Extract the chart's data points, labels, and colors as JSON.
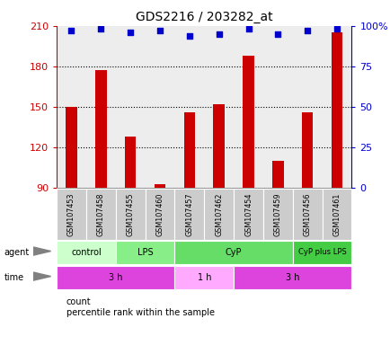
{
  "title": "GDS2216 / 203282_at",
  "samples": [
    "GSM107453",
    "GSM107458",
    "GSM107455",
    "GSM107460",
    "GSM107457",
    "GSM107462",
    "GSM107454",
    "GSM107459",
    "GSM107456",
    "GSM107461"
  ],
  "counts": [
    150,
    177,
    128,
    93,
    146,
    152,
    188,
    110,
    146,
    205
  ],
  "percentile_ranks": [
    97,
    98,
    96,
    97,
    94,
    95,
    98,
    95,
    97,
    98
  ],
  "ylim_left": [
    90,
    210
  ],
  "yticks_left": [
    90,
    120,
    150,
    180,
    210
  ],
  "yticks_right": [
    0,
    25,
    50,
    75,
    100
  ],
  "bar_color": "#cc0000",
  "dot_color": "#0000cc",
  "agent_groups": [
    {
      "label": "control",
      "start": 0,
      "end": 2,
      "color": "#ccffcc"
    },
    {
      "label": "LPS",
      "start": 2,
      "end": 4,
      "color": "#88ee88"
    },
    {
      "label": "CyP",
      "start": 4,
      "end": 8,
      "color": "#66dd66"
    },
    {
      "label": "CyP plus LPS",
      "start": 8,
      "end": 10,
      "color": "#44cc44"
    }
  ],
  "time_groups": [
    {
      "label": "3 h",
      "start": 0,
      "end": 4,
      "color": "#dd44dd"
    },
    {
      "label": "1 h",
      "start": 4,
      "end": 6,
      "color": "#ffaaff"
    },
    {
      "label": "3 h",
      "start": 6,
      "end": 10,
      "color": "#dd44dd"
    }
  ],
  "agent_label": "agent",
  "time_label": "time",
  "legend_count_label": "count",
  "legend_pct_label": "percentile rank within the sample",
  "ylabel_left_color": "#cc0000",
  "ylabel_right_color": "#0000cc",
  "background_color": "#ffffff",
  "sample_bg_color": "#cccccc",
  "border_color": "#999999"
}
